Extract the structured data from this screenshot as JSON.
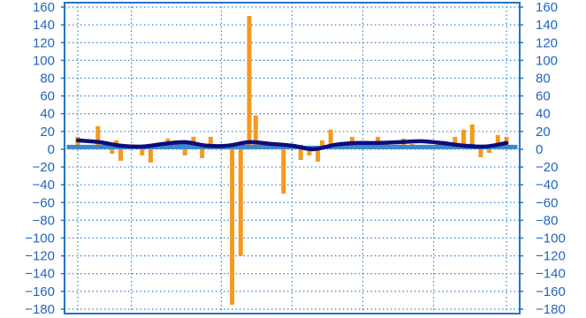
{
  "chart_data": {
    "type": "bar",
    "title": "",
    "xlabel": "",
    "ylabel": "",
    "ylim": [
      -185,
      165
    ],
    "y_ticks": [
      -180,
      -160,
      -140,
      -120,
      -100,
      -80,
      -60,
      -40,
      -20,
      0,
      20,
      40,
      60,
      80,
      100,
      120,
      140,
      160
    ],
    "y_tick_labels": [
      "−180",
      "−160",
      "−140",
      "−120",
      "−100",
      "−80",
      "−60",
      "−40",
      "−20",
      "0",
      "20",
      "40",
      "60",
      "80",
      "100",
      "120",
      "140",
      "160"
    ],
    "x_tick_labels": [],
    "grid": true,
    "legend": null,
    "x_range": [
      0,
      100
    ],
    "x_ticks": [
      0,
      12.5,
      33.5,
      50,
      66.5,
      83,
      100
    ],
    "series": [
      {
        "type": "bar",
        "x": [
          0,
          4.7,
          8,
          9,
          10,
          12.5,
          15,
          17,
          19,
          21,
          23,
          25,
          27,
          29,
          31,
          33.5,
          36,
          38,
          40,
          41.5,
          42.5,
          44,
          46,
          48,
          50,
          52,
          54,
          56,
          57,
          59,
          62,
          64,
          66,
          68,
          70,
          72,
          74,
          76,
          78,
          80,
          82,
          84,
          86,
          88,
          90,
          92,
          94,
          96,
          98,
          100
        ],
        "values": [
          14,
          26,
          -5,
          10,
          -13,
          3,
          -7,
          -15,
          5,
          12,
          10,
          -7,
          14,
          -10,
          14,
          4,
          -175,
          -120,
          150,
          38,
          6,
          8,
          5,
          -50,
          4,
          -12,
          -7,
          -14,
          10,
          22,
          6,
          14,
          6,
          4,
          14,
          6,
          4,
          12,
          6,
          4,
          4,
          6,
          8,
          14,
          22,
          28,
          -9,
          -4,
          16,
          14
        ]
      },
      {
        "type": "bar",
        "x": [
          0,
          5,
          10,
          15,
          20,
          25,
          30,
          35,
          40,
          45,
          50,
          55,
          60,
          65,
          70,
          75,
          80,
          85,
          90,
          95,
          100
        ],
        "values": [
          5,
          5,
          5,
          5,
          5,
          6,
          5,
          5,
          5,
          5,
          5,
          4,
          5,
          5,
          5,
          5,
          5,
          5,
          6,
          5,
          5
        ]
      },
      {
        "type": "line",
        "x": [
          0,
          5,
          10,
          15,
          20,
          25,
          30,
          35,
          40,
          45,
          50,
          55,
          60,
          65,
          70,
          75,
          80,
          85,
          90,
          95,
          100
        ],
        "values": [
          10,
          8,
          4,
          3,
          6,
          8,
          4,
          4,
          8,
          6,
          4,
          0,
          5,
          7,
          7,
          8,
          9,
          7,
          4,
          3,
          7
        ]
      }
    ]
  },
  "colors": {
    "background": "#ffffff",
    "axis": "#2673c2",
    "grid": "#2b83d9",
    "orange_bars": "#f59a1c",
    "blue_bars": "#3e86d0",
    "line": "#0d0d7a",
    "tick_text": "#1f65c1"
  }
}
